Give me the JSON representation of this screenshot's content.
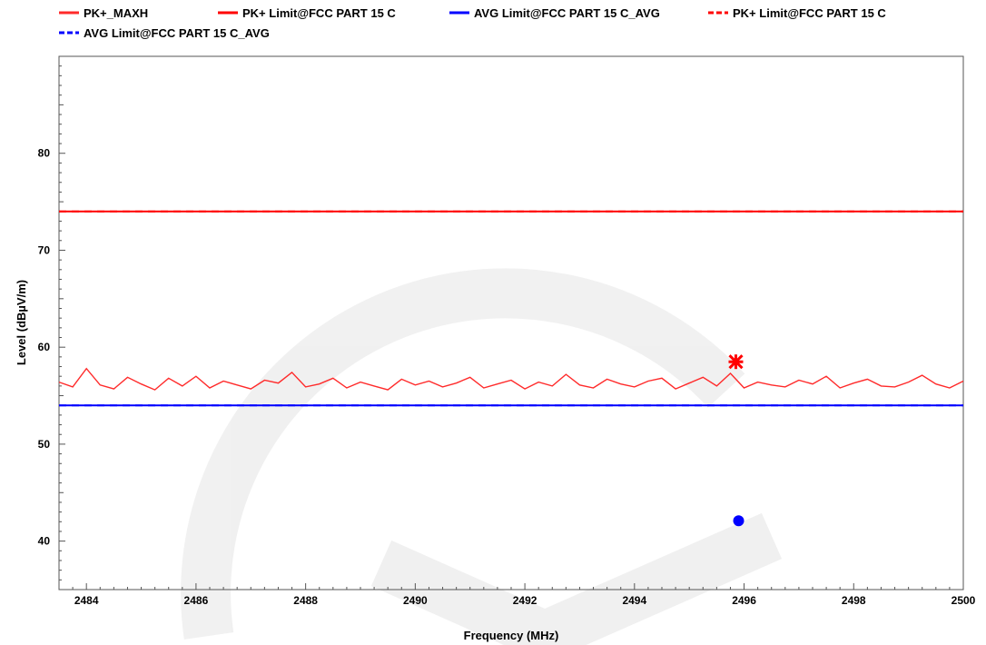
{
  "chart_data": {
    "type": "line",
    "title": "",
    "xlabel": "Frequency (MHz)",
    "ylabel": "Level (dBµV/m)",
    "xlim": [
      2483.5,
      2500
    ],
    "ylim": [
      35,
      90
    ],
    "x_ticks": [
      {
        "value": 2484,
        "label": "2484"
      },
      {
        "value": 2486,
        "label": "2486"
      },
      {
        "value": 2488,
        "label": "2488"
      },
      {
        "value": 2490,
        "label": "2490"
      },
      {
        "value": 2492,
        "label": "2492"
      },
      {
        "value": 2494,
        "label": "2494"
      },
      {
        "value": 2496,
        "label": "2496"
      },
      {
        "value": 2498,
        "label": "2498"
      },
      {
        "value": 2500,
        "label": "2500"
      }
    ],
    "y_ticks": [
      {
        "value": 40,
        "label": "40"
      },
      {
        "value": 50,
        "label": "50"
      },
      {
        "value": 60,
        "label": "60"
      },
      {
        "value": 70,
        "label": "70"
      },
      {
        "value": 80,
        "label": "80"
      }
    ],
    "grid": false,
    "legend_position": "top",
    "series": [
      {
        "name": "PK+_MAXH",
        "color": "#ff2a2a",
        "style": "solid",
        "x": [
          2483.5,
          2483.75,
          2484.0,
          2484.25,
          2484.5,
          2484.75,
          2485.0,
          2485.25,
          2485.5,
          2485.75,
          2486.0,
          2486.25,
          2486.5,
          2486.75,
          2487.0,
          2487.25,
          2487.5,
          2487.75,
          2488.0,
          2488.25,
          2488.5,
          2488.75,
          2489.0,
          2489.25,
          2489.5,
          2489.75,
          2490.0,
          2490.25,
          2490.5,
          2490.75,
          2491.0,
          2491.25,
          2491.5,
          2491.75,
          2492.0,
          2492.25,
          2492.5,
          2492.75,
          2493.0,
          2493.25,
          2493.5,
          2493.75,
          2494.0,
          2494.25,
          2494.5,
          2494.75,
          2495.0,
          2495.25,
          2495.5,
          2495.75,
          2496.0,
          2496.25,
          2496.5,
          2496.75,
          2497.0,
          2497.25,
          2497.5,
          2497.75,
          2498.0,
          2498.25,
          2498.5,
          2498.75,
          2499.0,
          2499.25,
          2499.5,
          2499.75,
          2500.0
        ],
        "values": [
          56.4,
          55.9,
          57.8,
          56.1,
          55.7,
          56.9,
          56.2,
          55.6,
          56.8,
          56.0,
          57.0,
          55.8,
          56.5,
          56.1,
          55.7,
          56.6,
          56.3,
          57.4,
          55.9,
          56.2,
          56.8,
          55.8,
          56.4,
          56.0,
          55.6,
          56.7,
          56.1,
          56.5,
          55.9,
          56.3,
          56.9,
          55.8,
          56.2,
          56.6,
          55.7,
          56.4,
          56.0,
          57.2,
          56.1,
          55.8,
          56.7,
          56.2,
          55.9,
          56.5,
          56.8,
          55.7,
          56.3,
          56.9,
          56.0,
          57.3,
          55.8,
          56.4,
          56.1,
          55.9,
          56.6,
          56.2,
          57.0,
          55.8,
          56.3,
          56.7,
          56.0,
          55.9,
          56.4,
          57.1,
          56.2,
          55.8,
          56.5
        ]
      },
      {
        "name": "PK+ Limit@FCC PART 15 C",
        "color": "#ff0000",
        "style": "solid",
        "x": [
          2483.5,
          2500
        ],
        "values": [
          74,
          74
        ]
      },
      {
        "name": "AVG Limit@FCC PART 15 C_AVG",
        "color": "#0000ff",
        "style": "solid",
        "x": [
          2483.5,
          2500
        ],
        "values": [
          54,
          54
        ]
      },
      {
        "name": "PK+ Limit@FCC PART 15 C",
        "color": "#ff0000",
        "style": "dashed",
        "x": [
          2483.5,
          2500
        ],
        "values": [
          74,
          74
        ]
      },
      {
        "name": "AVG Limit@FCC PART 15 C_AVG",
        "color": "#0000ff",
        "style": "dashed",
        "x": [
          2483.5,
          2500
        ],
        "values": [
          54,
          54
        ]
      }
    ],
    "markers": [
      {
        "name": "peak-marker",
        "shape": "asterisk",
        "color": "#ff0000",
        "x": 2495.85,
        "y": 58.5
      },
      {
        "name": "avg-marker",
        "shape": "circle",
        "color": "#0000ff",
        "x": 2495.9,
        "y": 42.1
      }
    ]
  }
}
